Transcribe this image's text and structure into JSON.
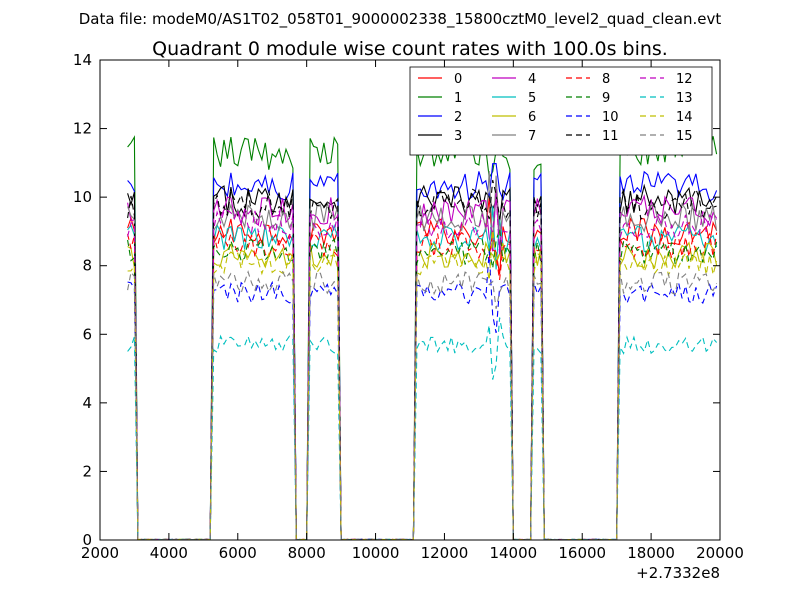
{
  "chart_data": {
    "type": "line",
    "suptitle": "Data file: modeM0/AS1T02_058T01_9000002338_15800cztM0_level2_quad_clean.evt",
    "title": "Quadrant 0 module wise count rates with 100.0s bins.",
    "xlabel": "",
    "ylabel": "",
    "x_offset_label": "+2.7332e8",
    "xlim": [
      2000,
      20000
    ],
    "ylim": [
      0,
      14
    ],
    "x_ticks": [
      2000,
      4000,
      6000,
      8000,
      10000,
      12000,
      14000,
      16000,
      18000,
      20000
    ],
    "x_tick_labels": [
      "2000",
      "4000",
      "6000",
      "8000",
      "10000",
      "12000",
      "14000",
      "16000",
      "18000",
      "20000"
    ],
    "y_ticks": [
      0,
      2,
      4,
      6,
      8,
      10,
      12,
      14
    ],
    "y_tick_labels": [
      "0",
      "2",
      "4",
      "6",
      "8",
      "10",
      "12",
      "14"
    ],
    "grid": false,
    "legend_position": "top-right",
    "legend_columns": 4,
    "bin_width": 100,
    "on_segments": [
      [
        2800,
        3000
      ],
      [
        5300,
        7600
      ],
      [
        8100,
        8900
      ],
      [
        11200,
        13900
      ],
      [
        14600,
        14800
      ],
      [
        17100,
        19900
      ]
    ],
    "series": [
      {
        "name": "0",
        "color": "#ff0000",
        "dash": "solid",
        "level": 9.0
      },
      {
        "name": "1",
        "color": "#008000",
        "dash": "solid",
        "level": 11.3
      },
      {
        "name": "2",
        "color": "#0000ff",
        "dash": "solid",
        "level": 10.3
      },
      {
        "name": "3",
        "color": "#000000",
        "dash": "solid",
        "level": 9.9
      },
      {
        "name": "4",
        "color": "#bf00bf",
        "dash": "solid",
        "level": 9.6
      },
      {
        "name": "5",
        "color": "#00bfbf",
        "dash": "solid",
        "level": 8.8
      },
      {
        "name": "6",
        "color": "#bfbf00",
        "dash": "solid",
        "level": 8.3
      },
      {
        "name": "7",
        "color": "#808080",
        "dash": "solid",
        "level": 9.4
      },
      {
        "name": "8",
        "color": "#ff0000",
        "dash": "dashed",
        "level": 8.6
      },
      {
        "name": "9",
        "color": "#008000",
        "dash": "dashed",
        "level": 8.4
      },
      {
        "name": "10",
        "color": "#0000ff",
        "dash": "dashed",
        "level": 7.2
      },
      {
        "name": "11",
        "color": "#000000",
        "dash": "dashed",
        "level": 9.8
      },
      {
        "name": "12",
        "color": "#bf00bf",
        "dash": "dashed",
        "level": 9.2
      },
      {
        "name": "13",
        "color": "#00bfbf",
        "dash": "dashed",
        "level": 5.7
      },
      {
        "name": "14",
        "color": "#bfbf00",
        "dash": "dashed",
        "level": 8.1
      },
      {
        "name": "15",
        "color": "#808080",
        "dash": "dashed",
        "level": 7.5
      }
    ]
  }
}
